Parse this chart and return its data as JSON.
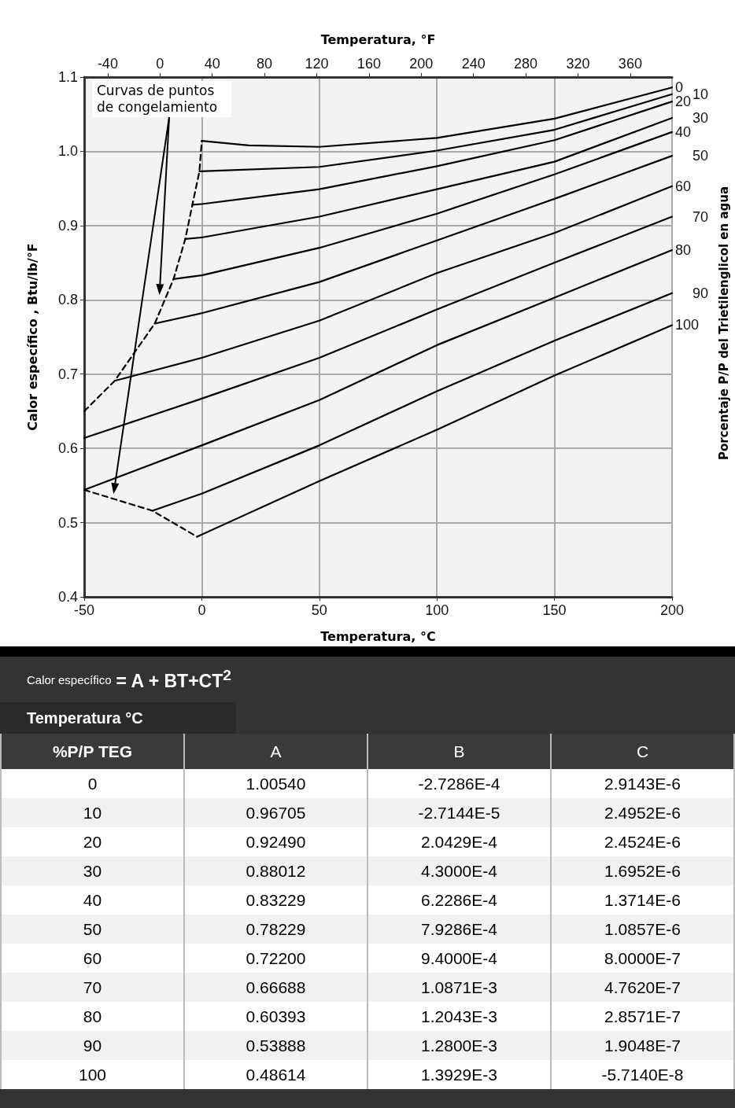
{
  "chart_data": {
    "type": "line",
    "xlabel": "Temperatura, °C",
    "x2label": "Temperatura, °F",
    "ylabel": "Calor específico , Btu/lb/°F",
    "legend_title": "Porcentaje P/P del Trietilenglicol en agua",
    "xlim": [
      -50,
      200
    ],
    "xticks": [
      -50,
      0,
      50,
      100,
      150,
      200
    ],
    "x2lim": [
      -58,
      392
    ],
    "x2ticks": [
      -40,
      0,
      40,
      80,
      120,
      160,
      200,
      240,
      280,
      320,
      360
    ],
    "ylim": [
      0.4,
      1.1
    ],
    "yticks": [
      0.4,
      0.5,
      0.6,
      0.7,
      0.8,
      0.9,
      {
        "value": 1,
        "label": "1.0"
      },
      1.1
    ],
    "grid": true,
    "marker": "none",
    "series": [
      {
        "name": "0",
        "color": "#000000",
        "x": [
          0,
          20,
          50,
          100,
          150,
          200
        ],
        "values": [
          1.014,
          1.008,
          1.006,
          1.018,
          1.044,
          1.086
        ]
      },
      {
        "name": "10",
        "color": "#000000",
        "x": [
          -1,
          50,
          100,
          150,
          200
        ],
        "values": [
          0.973,
          0.979,
          1.001,
          1.029,
          1.077
        ]
      },
      {
        "name": "20",
        "color": "#000000",
        "x": [
          -4,
          0,
          50,
          100,
          150,
          200
        ],
        "values": [
          0.928,
          0.929,
          0.949,
          0.98,
          1.015,
          1.067
        ]
      },
      {
        "name": "30",
        "color": "#000000",
        "x": [
          -7,
          0,
          50,
          100,
          150,
          200
        ],
        "values": [
          0.882,
          0.884,
          0.912,
          0.949,
          0.986,
          1.045
        ]
      },
      {
        "name": "40",
        "color": "#000000",
        "x": [
          -12,
          0,
          50,
          100,
          150,
          200
        ],
        "values": [
          0.828,
          0.833,
          0.87,
          0.916,
          0.969,
          1.026
        ]
      },
      {
        "name": "50",
        "color": "#000000",
        "x": [
          -20,
          0,
          50,
          100,
          150,
          200
        ],
        "values": [
          0.768,
          0.782,
          0.824,
          0.88,
          0.936,
          0.994
        ]
      },
      {
        "name": "60",
        "color": "#000000",
        "x": [
          -37,
          0,
          50,
          100,
          150,
          200
        ],
        "values": [
          0.691,
          0.722,
          0.772,
          0.836,
          0.89,
          0.953
        ]
      },
      {
        "name": "70",
        "color": "#000000",
        "x": [
          -50,
          0,
          50,
          100,
          150,
          200
        ],
        "values": [
          0.614,
          0.667,
          0.722,
          0.787,
          0.85,
          0.912
        ]
      },
      {
        "name": "80",
        "color": "#000000",
        "x": [
          -50,
          0,
          50,
          100,
          150,
          200
        ],
        "values": [
          0.544,
          0.604,
          0.665,
          0.739,
          0.803,
          0.867
        ]
      },
      {
        "name": "90",
        "color": "#000000",
        "x": [
          -21,
          0,
          50,
          100,
          150,
          200
        ],
        "values": [
          0.516,
          0.539,
          0.604,
          0.677,
          0.745,
          0.809
        ]
      },
      {
        "name": "100",
        "color": "#000000",
        "x": [
          -2,
          50,
          100,
          150,
          200
        ],
        "values": [
          0.481,
          0.556,
          0.625,
          0.698,
          0.766
        ]
      },
      {
        "color": "#000000",
        "line_style": "dashed",
        "x": [
          -50,
          -37,
          -20,
          -12,
          -7,
          -4,
          -1,
          0
        ],
        "values": [
          0.65,
          0.691,
          0.768,
          0.828,
          0.882,
          0.928,
          0.973,
          1.014
        ]
      },
      {
        "color": "#000000",
        "line_style": "dashed",
        "x": [
          -50,
          -21,
          -2
        ],
        "values": [
          0.544,
          0.516,
          0.481
        ]
      }
    ],
    "annotations": [
      "Curvas de puntos de congelamiento",
      "Calor específico",
      "= A + BT+CT$^{2}$",
      "Temperatura °C",
      "%P/P TEG",
      "A",
      "B",
      "C",
      "0",
      "1.00540",
      "-2.7286E-4",
      "2.9143E-6",
      "10",
      "0.96705",
      "-2.7144E-5",
      "2.4952E-6",
      "20",
      "0.92490",
      "2.0429E-4",
      "2.4524E-6",
      "30",
      "0.88012",
      "4.3000E-4",
      "1.6952E-6",
      "40",
      "0.83229",
      "6.2286E-4",
      "1.3714E-6",
      "50",
      "0.78229",
      "7.9286E-4",
      "1.0857E-6",
      "60",
      "0.72200",
      "9.4000E-4",
      "8.0000E-7",
      "70",
      "0.66688",
      "1.0871E-3",
      "4.7620E-7",
      "80",
      "0.60393",
      "1.2043E-3",
      "2.8571E-7",
      "90",
      "0.53888",
      "1.2800E-3",
      "1.9048E-7",
      "100",
      "0.48614",
      "1.3929E-3",
      "-5.7140E-8"
    ]
  }
}
